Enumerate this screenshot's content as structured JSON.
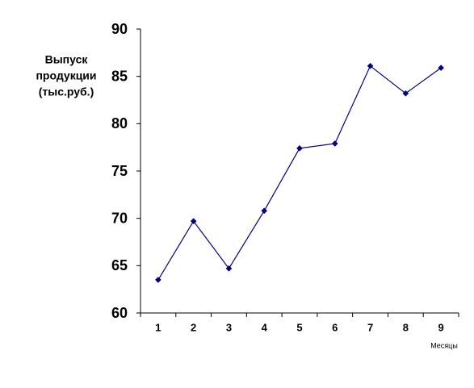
{
  "chart_data": {
    "type": "line",
    "ylabel_lines": [
      "Выпуск",
      "продукции",
      "(тыс.руб.)"
    ],
    "xlabel": "Месяцы",
    "categories": [
      "1",
      "2",
      "3",
      "4",
      "5",
      "6",
      "7",
      "8",
      "9"
    ],
    "series": [
      {
        "color": "#000080",
        "values": [
          63.5,
          69.7,
          64.7,
          70.8,
          77.4,
          77.9,
          86.1,
          83.2,
          85.9
        ]
      }
    ],
    "ylim": [
      60,
      90
    ],
    "yticks": [
      60,
      65,
      70,
      75,
      80,
      85,
      90
    ],
    "grid": false
  }
}
